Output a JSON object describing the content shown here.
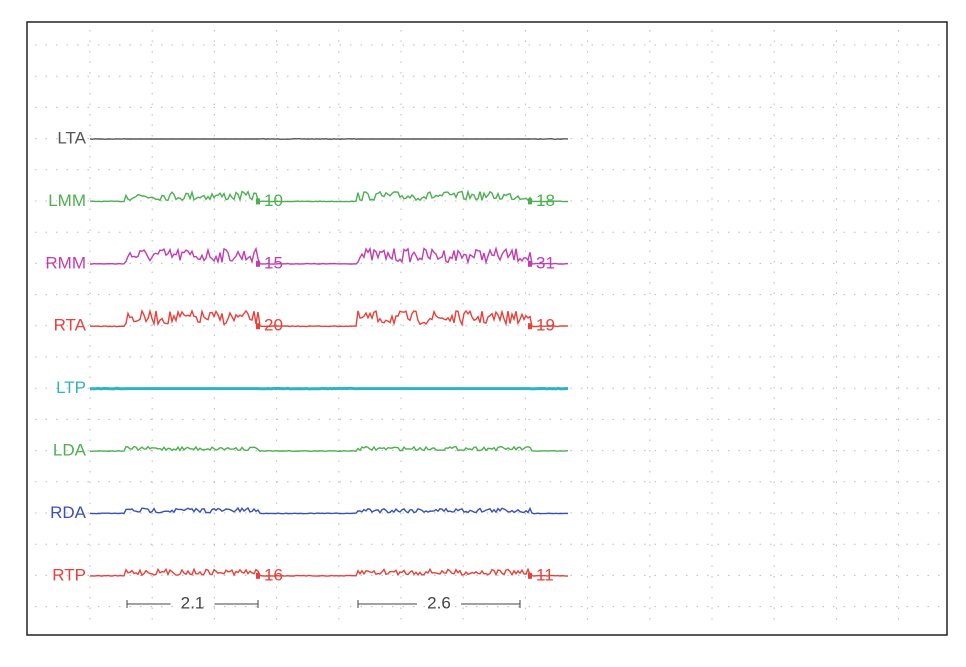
{
  "channels": [
    {
      "label": "LTA",
      "color": "#555555"
    },
    {
      "label": "LMM",
      "color": "#4caf50",
      "annotations": [
        10,
        18
      ]
    },
    {
      "label": "RMM",
      "color": "#c13cb0",
      "annotations": [
        15,
        31
      ]
    },
    {
      "label": "RTA",
      "color": "#e8403a",
      "annotations": [
        20,
        19
      ]
    },
    {
      "label": "LTP",
      "color": "#2fb3c0"
    },
    {
      "label": "LDA",
      "color": "#4caf50"
    },
    {
      "label": "RDA",
      "color": "#3a4fb8"
    },
    {
      "label": "RTP",
      "color": "#e8403a",
      "annotations": [
        16,
        11
      ]
    }
  ],
  "scale_bars": [
    "2.1",
    "2.6"
  ]
}
